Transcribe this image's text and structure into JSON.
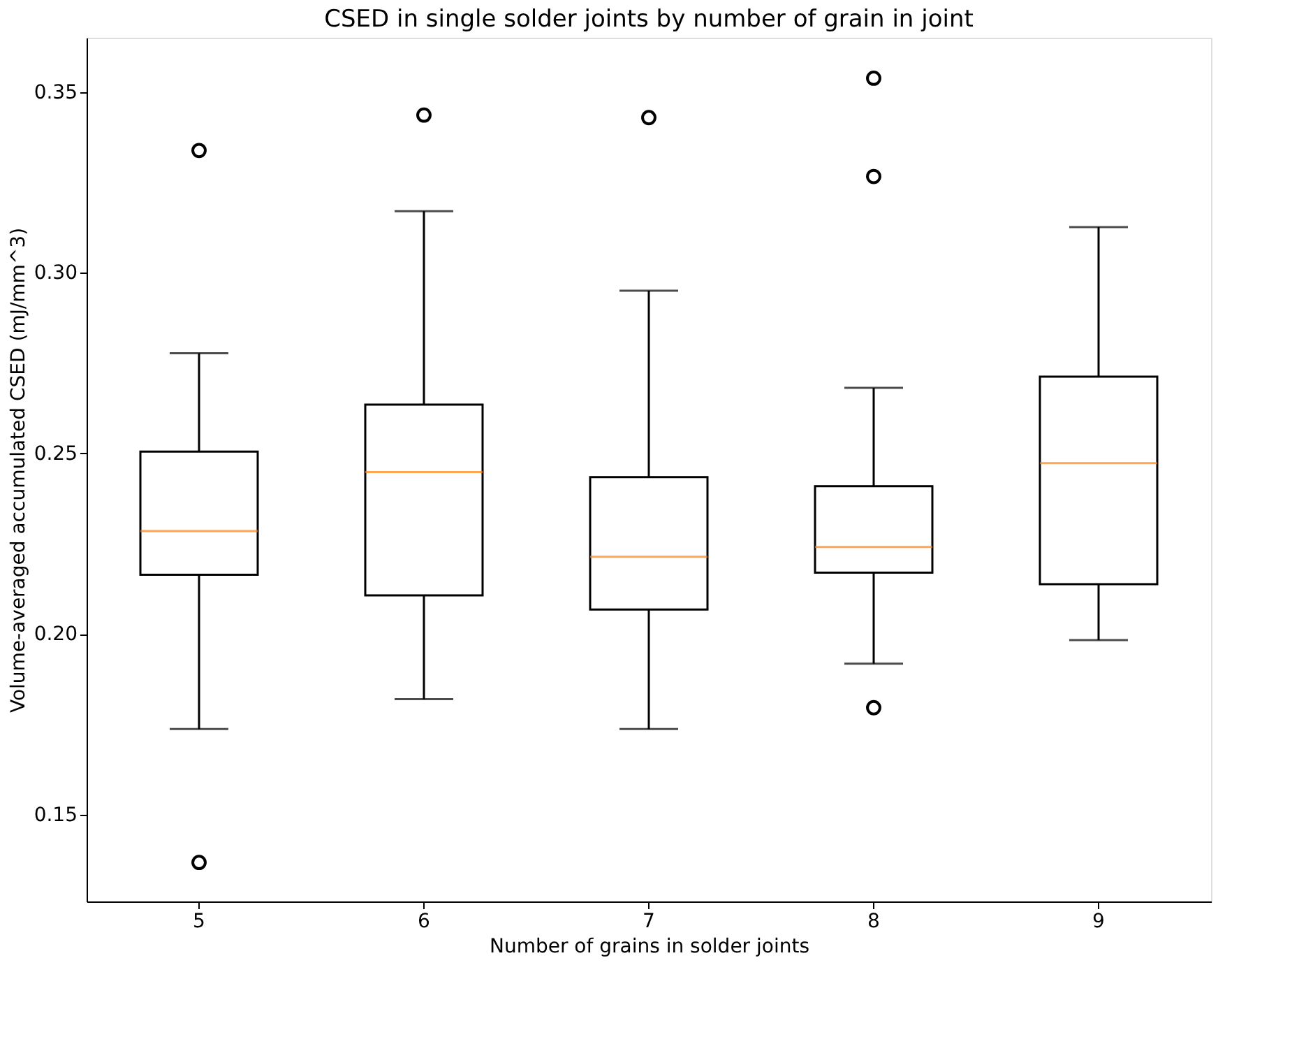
{
  "chart_data": {
    "type": "box",
    "title": "CSED in single solder joints by number of grain in joint",
    "xlabel": "Number of grains in solder joints",
    "ylabel": "Volume-averaged accumulated CSED (mJ/mm^3)",
    "categories": [
      "5",
      "6",
      "7",
      "8",
      "9"
    ],
    "boxes": [
      {
        "low": 0.1737,
        "q1": 0.2164,
        "median": 0.2285,
        "q3": 0.2505,
        "high": 0.2777,
        "outliers": [
          0.3338,
          0.1368
        ]
      },
      {
        "low": 0.182,
        "q1": 0.2107,
        "median": 0.2448,
        "q3": 0.2635,
        "high": 0.317,
        "outliers": [
          0.3436
        ]
      },
      {
        "low": 0.1737,
        "q1": 0.2068,
        "median": 0.2214,
        "q3": 0.2434,
        "high": 0.295,
        "outliers": [
          0.3429
        ]
      },
      {
        "low": 0.1918,
        "q1": 0.217,
        "median": 0.2241,
        "q3": 0.2409,
        "high": 0.2681,
        "outliers": [
          0.3538,
          0.3266,
          0.1796
        ]
      },
      {
        "low": 0.1983,
        "q1": 0.2138,
        "median": 0.2473,
        "q3": 0.2712,
        "high": 0.3126
      }
    ],
    "ylim": [
      0.126,
      0.365
    ],
    "yticks": [
      0.15,
      {
        "value": 0.2,
        "label": "0.20"
      },
      0.25,
      {
        "value": 0.3,
        "label": "0.30"
      },
      0.35
    ]
  }
}
